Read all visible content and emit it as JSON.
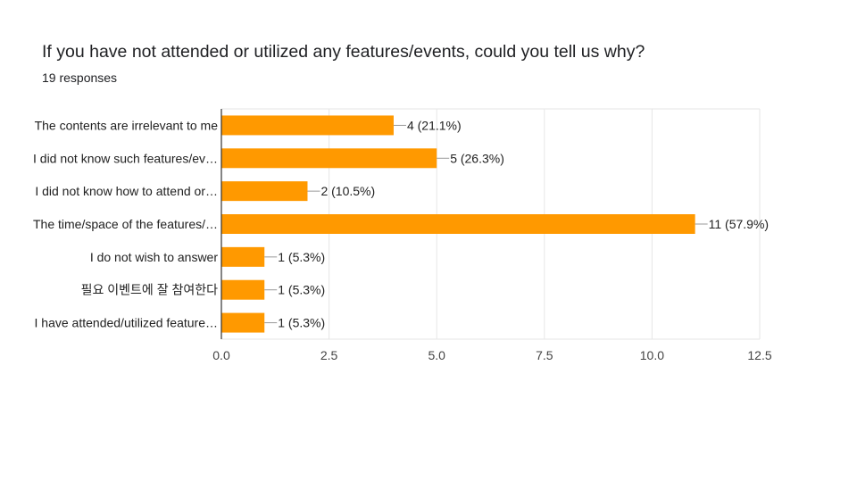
{
  "header": {
    "question": "If you have not attended or utilized any features/events, could you tell us why?",
    "responses": "19 responses"
  },
  "colors": {
    "bar": "#ff9900",
    "grid": "#e6e6e6",
    "axis": "#333333",
    "text": "#212121",
    "tick": "#444444"
  },
  "chart_data": {
    "type": "bar",
    "orientation": "horizontal",
    "title": "",
    "xlabel": "",
    "ylabel": "",
    "categories": [
      "The contents are irrelevant to me",
      "I did not know such features/ev…",
      "I did not know how to attend or…",
      "The time/space of the features/…",
      "I do not wish to answer",
      "필요 이벤트에 잘 참여한다",
      "I have attended/utilized feature…"
    ],
    "values": [
      4,
      5,
      2,
      11,
      1,
      1,
      1
    ],
    "value_labels": [
      "4 (21.1%)",
      "5 (26.3%)",
      "2 (10.5%)",
      "11 (57.9%)",
      "1 (5.3%)",
      "1 (5.3%)",
      "1 (5.3%)"
    ],
    "xlim": [
      0,
      12.5
    ],
    "xticks": [
      0,
      2.5,
      5,
      7.5,
      10,
      12.5
    ],
    "xtick_labels": [
      "0.0",
      "2.5",
      "5.0",
      "7.5",
      "10.0",
      "12.5"
    ],
    "grid": true,
    "legend": "none"
  }
}
